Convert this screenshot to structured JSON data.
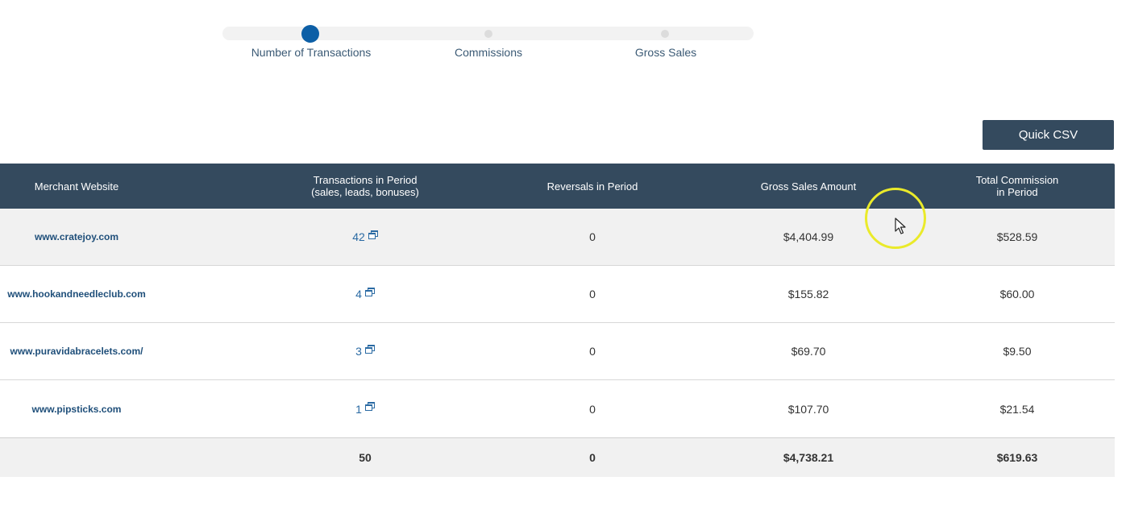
{
  "slider": {
    "steps": [
      {
        "label": "Number of Transactions",
        "active": true
      },
      {
        "label": "Commissions",
        "active": false
      },
      {
        "label": "Gross Sales",
        "active": false
      }
    ],
    "active_color": "#0d5fa6"
  },
  "toolbar": {
    "csv_label": "Quick CSV"
  },
  "table": {
    "header_color": "#344a5e",
    "columns": [
      {
        "line1": "Merchant Website",
        "line2": ""
      },
      {
        "line1": "Transactions in Period",
        "line2": "(sales, leads, bonuses)"
      },
      {
        "line1": "Reversals in Period",
        "line2": ""
      },
      {
        "line1": "Gross Sales Amount",
        "line2": ""
      },
      {
        "line1": "Total Commission",
        "line2": "in Period"
      }
    ],
    "rows": [
      {
        "merchant": "www.cratejoy.com",
        "transactions": "42",
        "reversals": "0",
        "gross": "$4,404.99",
        "commission": "$528.59"
      },
      {
        "merchant": "www.hookandneedleclub.com",
        "transactions": "4",
        "reversals": "0",
        "gross": "$155.82",
        "commission": "$60.00"
      },
      {
        "merchant": "www.puravidabracelets.com/",
        "transactions": "3",
        "reversals": "0",
        "gross": "$69.70",
        "commission": "$9.50"
      },
      {
        "merchant": "www.pipsticks.com",
        "transactions": "1",
        "reversals": "0",
        "gross": "$107.70",
        "commission": "$21.54"
      }
    ],
    "totals": {
      "transactions": "50",
      "reversals": "0",
      "gross": "$4,738.21",
      "commission": "$619.63"
    }
  },
  "icons": {
    "transactions_detail": "popup-window-icon",
    "cursor": "mouse-pointer-icon"
  }
}
